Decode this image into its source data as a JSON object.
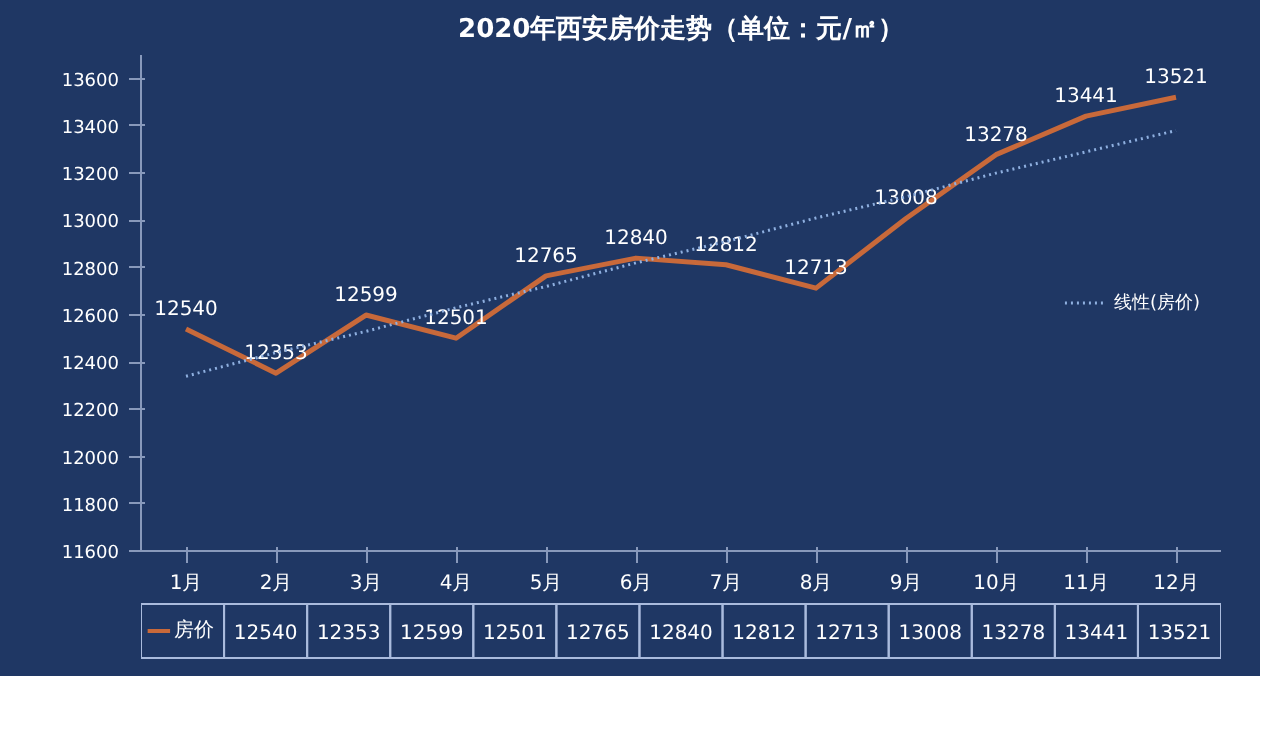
{
  "chart_data": {
    "type": "line",
    "title": "2020年西安房价走势（单位：元/㎡）",
    "categories": [
      "1月",
      "2月",
      "3月",
      "4月",
      "5月",
      "6月",
      "7月",
      "8月",
      "9月",
      "10月",
      "11月",
      "12月"
    ],
    "series": [
      {
        "name": "房价",
        "color": "#c8693a",
        "values": [
          12540,
          12353,
          12599,
          12501,
          12765,
          12840,
          12812,
          12713,
          13008,
          13278,
          13441,
          13521
        ],
        "value_labels": [
          "12540",
          "12353",
          "12599",
          "12501",
          "12765",
          "12840",
          "12812",
          "12713",
          "13008",
          "13278",
          "13441",
          "13521"
        ]
      },
      {
        "name": "线性(房价)",
        "type": "line",
        "color": "#8fb0e0",
        "line_style": "dotted",
        "values": [
          12340,
          12440,
          12530,
          12630,
          12720,
          12820,
          12910,
          13010,
          13100,
          13200,
          13290,
          13380
        ]
      }
    ],
    "ylim": [
      11600,
      13700
    ],
    "yticks": [
      11600,
      11800,
      12000,
      12200,
      12400,
      12600,
      12800,
      13000,
      13200,
      13400,
      13600
    ],
    "grid": false,
    "legend": "right",
    "marker": "none"
  }
}
